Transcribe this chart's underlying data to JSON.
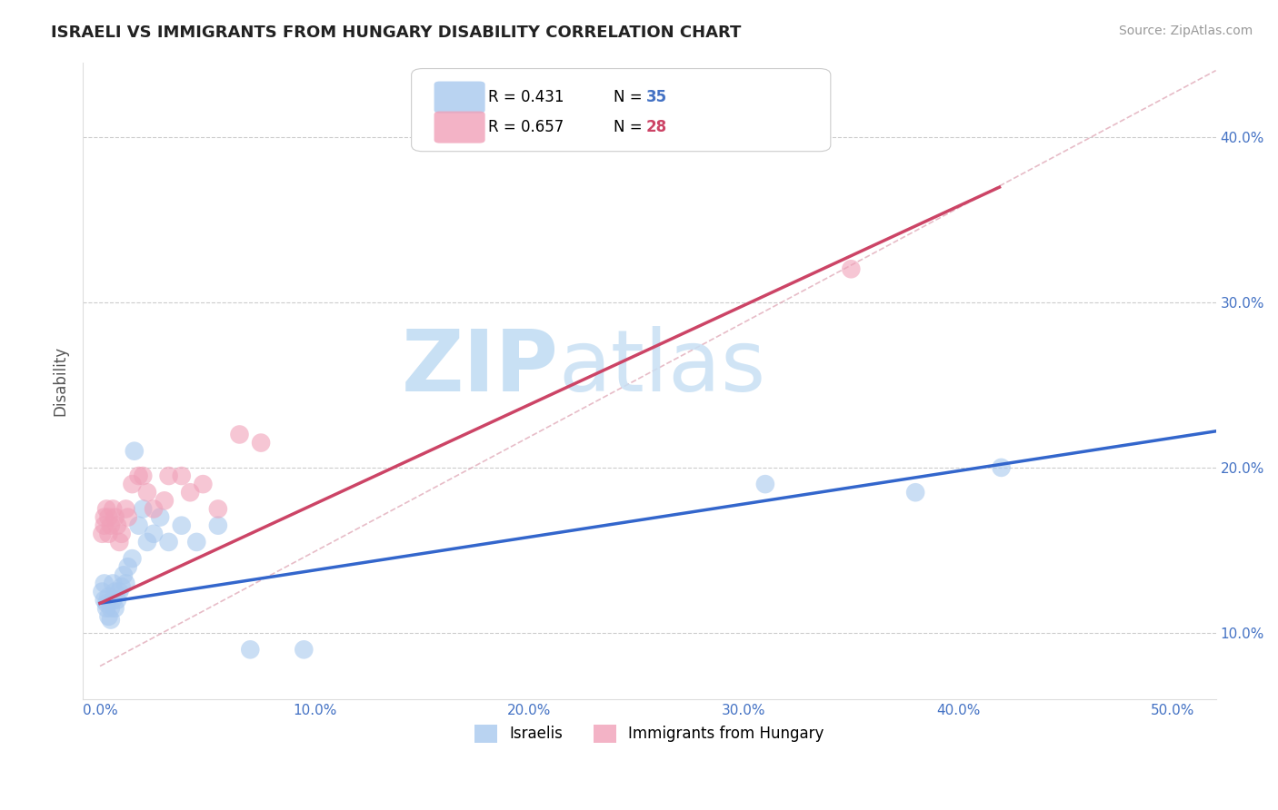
{
  "title": "ISRAELI VS IMMIGRANTS FROM HUNGARY DISABILITY CORRELATION CHART",
  "source": "Source: ZipAtlas.com",
  "ylabel": "Disability",
  "x_ticks": [
    0.0,
    0.1,
    0.2,
    0.3,
    0.4,
    0.5
  ],
  "x_tick_labels": [
    "0.0%",
    "10.0%",
    "20.0%",
    "30.0%",
    "40.0%",
    "50.0%"
  ],
  "y_ticks": [
    0.1,
    0.2,
    0.3,
    0.4
  ],
  "y_tick_labels": [
    "10.0%",
    "20.0%",
    "30.0%",
    "40.0%"
  ],
  "xlim": [
    -0.008,
    0.52
  ],
  "ylim": [
    0.06,
    0.445
  ],
  "series_blue": {
    "name": "Israelis",
    "color": "#A8C8EE",
    "x": [
      0.001,
      0.002,
      0.002,
      0.003,
      0.003,
      0.004,
      0.004,
      0.005,
      0.005,
      0.006,
      0.006,
      0.007,
      0.007,
      0.008,
      0.009,
      0.01,
      0.011,
      0.012,
      0.013,
      0.015,
      0.016,
      0.018,
      0.02,
      0.022,
      0.025,
      0.028,
      0.032,
      0.038,
      0.045,
      0.055,
      0.07,
      0.095,
      0.31,
      0.38,
      0.42
    ],
    "y": [
      0.125,
      0.13,
      0.12,
      0.118,
      0.115,
      0.122,
      0.11,
      0.115,
      0.108,
      0.13,
      0.12,
      0.125,
      0.115,
      0.12,
      0.125,
      0.128,
      0.135,
      0.13,
      0.14,
      0.145,
      0.21,
      0.165,
      0.175,
      0.155,
      0.16,
      0.17,
      0.155,
      0.165,
      0.155,
      0.165,
      0.09,
      0.09,
      0.19,
      0.185,
      0.2
    ],
    "R": 0.431,
    "N": 35,
    "line_color": "#3366CC",
    "line_intercept": 0.118,
    "line_slope": 0.2
  },
  "series_pink": {
    "name": "Immigrants from Hungary",
    "color": "#F0A0B8",
    "x": [
      0.001,
      0.002,
      0.002,
      0.003,
      0.004,
      0.004,
      0.005,
      0.006,
      0.007,
      0.008,
      0.009,
      0.01,
      0.012,
      0.013,
      0.015,
      0.018,
      0.02,
      0.022,
      0.025,
      0.03,
      0.032,
      0.038,
      0.042,
      0.048,
      0.055,
      0.065,
      0.075,
      0.35
    ],
    "y": [
      0.16,
      0.165,
      0.17,
      0.175,
      0.17,
      0.16,
      0.165,
      0.175,
      0.17,
      0.165,
      0.155,
      0.16,
      0.175,
      0.17,
      0.19,
      0.195,
      0.195,
      0.185,
      0.175,
      0.18,
      0.195,
      0.195,
      0.185,
      0.19,
      0.175,
      0.22,
      0.215,
      0.32
    ],
    "R": 0.657,
    "N": 28,
    "line_color": "#CC4466",
    "line_intercept": 0.118,
    "line_slope": 0.6
  },
  "ref_line_color": "#DDA0B0",
  "watermark_zip": "ZIP",
  "watermark_atlas": "atlas",
  "watermark_color": "#C8E0F4",
  "background_color": "#FFFFFF",
  "title_fontsize": 13,
  "tick_color": "#4472C4",
  "legend_r_color": "#000000",
  "legend_n_color": "#4472C4",
  "grid_color": "#CCCCCC",
  "legend_blue_color": "#A8C8EE",
  "legend_pink_color": "#F0A0B8"
}
